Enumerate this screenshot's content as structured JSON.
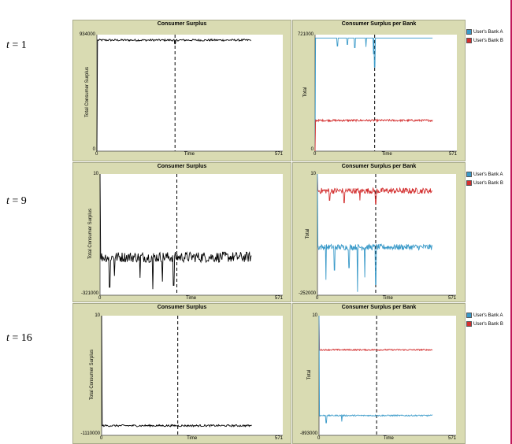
{
  "row_labels": [
    {
      "var": "t",
      "eq": " = 1"
    },
    {
      "var": "t",
      "eq": " = 9"
    },
    {
      "var": "t",
      "eq": " = 16"
    }
  ],
  "colors": {
    "bank_a": "#3a9ac9",
    "bank_b": "#d32f2f",
    "total": "#000000",
    "panel_bg": "#d9dbb2"
  },
  "chart_data": [
    {
      "id": "cs-t1",
      "type": "line",
      "title": "Consumer Surplus",
      "xlabel": "Time",
      "ylabel": "Total Consumer Surplus",
      "xlim": [
        0,
        571
      ],
      "ylim": [
        0,
        934000
      ],
      "x_ticks": [
        "0",
        "571"
      ],
      "y_ticks": [
        "0",
        "934000"
      ],
      "vline_x": 240,
      "series": [
        {
          "color": "#000000",
          "start": 0,
          "level": 890000,
          "noise": 8000,
          "spikes": [
            {
              "x": 240,
              "v": 860000
            }
          ],
          "end": 571
        }
      ]
    },
    {
      "id": "csb-t1",
      "type": "line",
      "title": "Consumer Surplus per Bank",
      "xlabel": "Time",
      "ylabel": "Total",
      "xlim": [
        0,
        571
      ],
      "ylim": [
        0,
        721000
      ],
      "x_ticks": [
        "0",
        "571"
      ],
      "y_ticks": [
        "0",
        "721000"
      ],
      "vline_x": 240,
      "legend": [
        "User's Bank A",
        "User's Bank B"
      ],
      "series": [
        {
          "color": "#3a9ac9",
          "start": 0,
          "level": 700000,
          "noise": 0,
          "spikes": [
            {
              "x": 90,
              "v": 650000
            },
            {
              "x": 130,
              "v": 660000
            },
            {
              "x": 160,
              "v": 640000
            },
            {
              "x": 205,
              "v": 645000
            },
            {
              "x": 235,
              "v": 600000
            },
            {
              "x": 240,
              "v": 520000
            }
          ],
          "end": 571
        },
        {
          "color": "#d32f2f",
          "start": 0,
          "level": 190000,
          "noise": 6000,
          "spikes": [],
          "end": 571
        }
      ]
    },
    {
      "id": "cs-t9",
      "type": "line",
      "title": "Consumer Surplus",
      "xlabel": "Time",
      "ylabel": "Total Consumer Surplus",
      "xlim": [
        0,
        571
      ],
      "ylim": [
        -321000,
        10
      ],
      "x_ticks": [
        "0",
        "571"
      ],
      "y_ticks": [
        "-321000",
        "10"
      ],
      "vline_x": 240,
      "series": [
        {
          "color": "#000000",
          "start": 0,
          "level": -220000,
          "noise": 14000,
          "spikes": [
            {
              "x": 30,
              "v": -300000
            },
            {
              "x": 45,
              "v": -270000
            },
            {
              "x": 125,
              "v": -275000
            },
            {
              "x": 165,
              "v": -305000
            },
            {
              "x": 195,
              "v": -285000
            },
            {
              "x": 230,
              "v": -295000
            }
          ],
          "end": 571
        }
      ]
    },
    {
      "id": "csb-t9",
      "type": "line",
      "title": "Consumer Surplus per Bank",
      "xlabel": "Time",
      "ylabel": "Total",
      "xlim": [
        0,
        571
      ],
      "ylim": [
        -252000,
        10
      ],
      "x_ticks": [
        "0",
        "571"
      ],
      "y_ticks": [
        "-252000",
        "10"
      ],
      "vline_x": 240,
      "legend": [
        "User's Bank A",
        "User's Bank B"
      ],
      "series": [
        {
          "color": "#d32f2f",
          "start": 0,
          "level": -35000,
          "noise": 6000,
          "spikes": [
            {
              "x": 50,
              "v": -55000
            },
            {
              "x": 110,
              "v": -60000
            },
            {
              "x": 175,
              "v": -55000
            },
            {
              "x": 240,
              "v": -62000
            }
          ],
          "end": 571
        },
        {
          "color": "#3a9ac9",
          "start": 0,
          "level": -152000,
          "noise": 6000,
          "spikes": [
            {
              "x": 35,
              "v": -220000
            },
            {
              "x": 70,
              "v": -200000
            },
            {
              "x": 130,
              "v": -195000
            },
            {
              "x": 165,
              "v": -245000
            },
            {
              "x": 195,
              "v": -215000
            },
            {
              "x": 240,
              "v": -230000
            }
          ],
          "end": 571
        }
      ]
    },
    {
      "id": "cs-t16",
      "type": "line",
      "title": "Consumer Surplus",
      "xlabel": "Time",
      "ylabel": "Total Consumer Surplus",
      "xlim": [
        0,
        571
      ],
      "ylim": [
        -1110000,
        10
      ],
      "x_ticks": [
        "0",
        "571"
      ],
      "y_ticks": [
        "-1110000",
        "10"
      ],
      "vline_x": 240,
      "series": [
        {
          "color": "#000000",
          "start": 0,
          "level": -1020000,
          "noise": 9000,
          "spikes": [],
          "end": 571
        }
      ]
    },
    {
      "id": "csb-t16",
      "type": "line",
      "title": "Consumer Surplus per Bank",
      "xlabel": "Time",
      "ylabel": "Total",
      "xlim": [
        0,
        571
      ],
      "ylim": [
        -893000,
        10
      ],
      "x_ticks": [
        "0",
        "571"
      ],
      "y_ticks": [
        "-893000",
        "10"
      ],
      "vline_x": 240,
      "legend": [
        "User's Bank A",
        "User's Bank B"
      ],
      "series": [
        {
          "color": "#d32f2f",
          "start": 0,
          "level": -255000,
          "noise": 5000,
          "spikes": [],
          "end": 571
        },
        {
          "color": "#3a9ac9",
          "start": 0,
          "level": -745000,
          "noise": 5000,
          "spikes": [
            {
              "x": 30,
              "v": -800000
            },
            {
              "x": 95,
              "v": -790000
            }
          ],
          "end": 571
        }
      ]
    }
  ]
}
